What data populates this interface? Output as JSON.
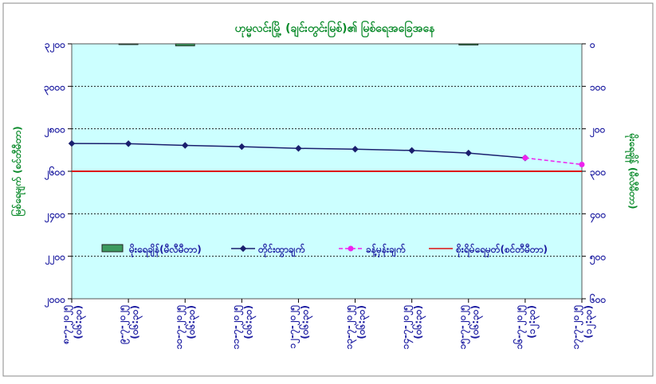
{
  "chart_data": {
    "type": "line",
    "title": "ဟုမ္မလင်းမြို့ (ချင်းတွင်းမြစ်)၏ မြစ်ရေအခြေအနေ",
    "ylabel": "မြစ်ရေမျက် (စင်တီမီတာ)",
    "y2label": "မိုးရေချိန် (မီလီမီတာ)",
    "categories": [
      "၈-၇-၂၀၂၅",
      "၉-၇-၂၀၂၅",
      "၁၀-၇-၂၀၂၅",
      "၁၁-၇-၂၀၂၅",
      "၁၂-၇-၂၀၂၅",
      "၁၃-၇-၂၀၂၅",
      "၁၄-၇-၂၀၂၅",
      "၁၅-၇-၂၀၂၅",
      "၁၆-၇-၂၀၂၅",
      "၁၇-၇-၂၀၂၅"
    ],
    "category_times": [
      "(၀၆:၃၀)",
      "(၀၆:၃၀)",
      "(၀၆:၃၀)",
      "(၀၆:၃၀)",
      "(၀၆:၃၀)",
      "(၀၆:၃၀)",
      "(၀၆:၃၀)",
      "(၀၆:၃၀)",
      "(၁၂:၃၀)",
      "(၁၂:၃၀)"
    ],
    "ylim": [
      2000,
      3200
    ],
    "yticks": [
      {
        "value": 2000,
        "label": "၂၀၀၀"
      },
      {
        "value": 2200,
        "label": "၂၂၀၀"
      },
      {
        "value": 2400,
        "label": "၂၄၀၀"
      },
      {
        "value": 2600,
        "label": "၂၆၀၀"
      },
      {
        "value": 2800,
        "label": "၂၈၀၀"
      },
      {
        "value": 3000,
        "label": "၃၀၀၀"
      },
      {
        "value": 3200,
        "label": "၃၂၀၀"
      }
    ],
    "y2lim": [
      600,
      0
    ],
    "y2ticks": [
      {
        "value": 0,
        "label": "၀"
      },
      {
        "value": 100,
        "label": "၁၀၀"
      },
      {
        "value": 200,
        "label": "၂၀၀"
      },
      {
        "value": 300,
        "label": "၃၀၀"
      },
      {
        "value": 400,
        "label": "၄၀၀"
      },
      {
        "value": 500,
        "label": "၅၀၀"
      },
      {
        "value": 600,
        "label": "၆၀၀"
      }
    ],
    "grid": true,
    "series": [
      {
        "name": "မိုးရေချိန်(မီလီမီတာ)",
        "kind": "bar",
        "axis": "y2",
        "color": "#3c9a5f",
        "values": [
          0,
          2,
          5,
          0,
          0,
          0,
          0,
          3,
          null,
          null
        ]
      },
      {
        "name": "တိုင်းထွာချက်",
        "kind": "line",
        "color": "#1a1f6e",
        "values": [
          2731,
          2730,
          2722,
          2716,
          2708,
          2704,
          2698,
          2686,
          2663,
          null
        ]
      },
      {
        "name": "ခန့်မှန်းချက်",
        "kind": "dashed",
        "color": "#ee22ee",
        "values": [
          null,
          null,
          null,
          null,
          null,
          null,
          null,
          null,
          2663,
          2632
        ]
      },
      {
        "name": "စိုးရိမ်ရေမှတ်(စင်တီမီတာ)",
        "kind": "level",
        "color": "#dd1111",
        "value": 2600
      }
    ]
  }
}
